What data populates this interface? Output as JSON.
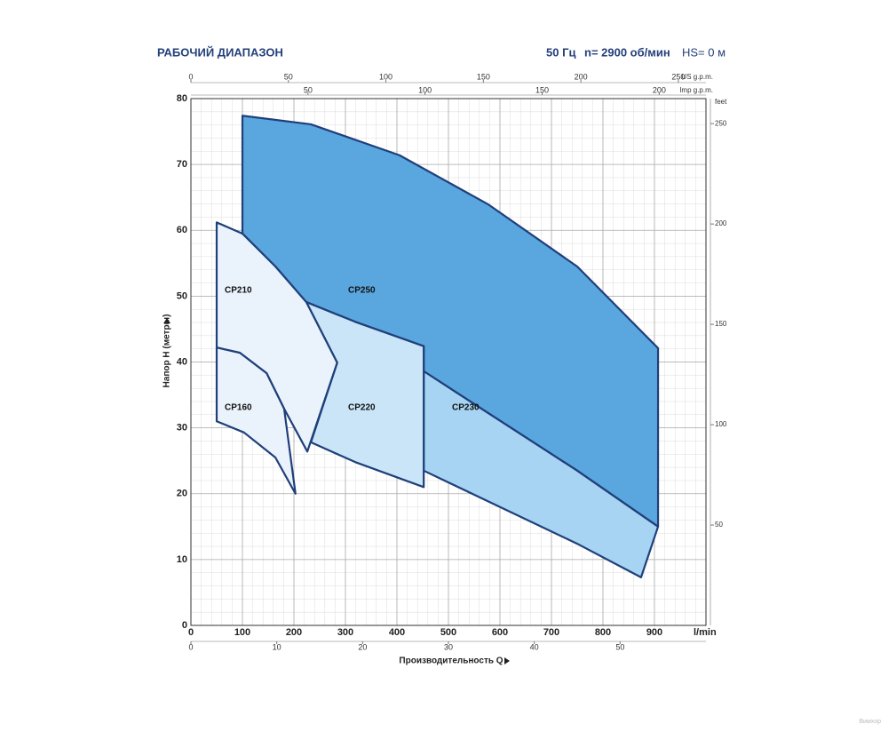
{
  "chart_data": {
    "type": "range",
    "title": "РАБОЧИЙ ДИАПАЗОН",
    "frequency": "50 Гц",
    "speed": "n= 2900 об/мин",
    "suction": "HS= 0 м",
    "xlabel": "Производительность Q",
    "ylabel": "Напор H (метры)",
    "x_unit": "l/min",
    "xlim": [
      0,
      1000
    ],
    "xticks": [
      0,
      100,
      200,
      300,
      400,
      500,
      600,
      700,
      800,
      900
    ],
    "ylim": [
      0,
      80
    ],
    "yticks": [
      0,
      10,
      20,
      30,
      40,
      50,
      60,
      70,
      80
    ],
    "y2_unit": "feet",
    "y2lim": [
      0,
      262.47
    ],
    "y2ticks": [
      50,
      100,
      150,
      200,
      250
    ],
    "x_m3h": {
      "lim": [
        0,
        60
      ],
      "ticks": [
        0,
        10,
        20,
        30,
        40,
        50
      ]
    },
    "x_us_gpm": {
      "unit": "US g.p.m.",
      "lim": [
        0,
        264.17
      ],
      "ticks": [
        0,
        50,
        100,
        150,
        200,
        250
      ]
    },
    "x_imp_gpm": {
      "unit": "Imp g.p.m.",
      "lim": [
        0,
        219.97
      ],
      "ticks": [
        50,
        100,
        150,
        200
      ]
    },
    "grid": true,
    "series": [
      {
        "name": "CP250",
        "color": "#5aa6de",
        "x": [
          100,
          233,
          405,
          578,
          750,
          907,
          907,
          750,
          578,
          452,
          452,
          319,
          224,
          164,
          100
        ],
        "y": [
          77.4,
          76.1,
          71.4,
          63.9,
          54.5,
          42.1,
          15.0,
          23.5,
          32.2,
          38.6,
          42.4,
          46.1,
          49.1,
          54.5,
          59.5
        ]
      },
      {
        "name": "CP230",
        "color": "#a6d4f2",
        "x": [
          452,
          578,
          750,
          907,
          874,
          750,
          578,
          452
        ],
        "y": [
          38.6,
          32.2,
          23.5,
          15.0,
          7.3,
          12.4,
          18.8,
          23.5
        ]
      },
      {
        "name": "CP220",
        "color": "#c9e5f7",
        "x": [
          224,
          319,
          452,
          452,
          319,
          233,
          284
        ],
        "y": [
          49.1,
          46.1,
          42.4,
          21.0,
          24.8,
          27.8,
          39.9
        ]
      },
      {
        "name": "CP210",
        "color": "#eaf3fb",
        "x": [
          50,
          100,
          164,
          224,
          284,
          226,
          181,
          147,
          95,
          50
        ],
        "y": [
          61.2,
          59.5,
          54.5,
          49.1,
          39.9,
          26.4,
          32.9,
          38.3,
          41.4,
          42.2
        ]
      },
      {
        "name": "CP160",
        "color": "#eaf3fb",
        "x": [
          50,
          95,
          147,
          181,
          203,
          164,
          103,
          50
        ],
        "y": [
          42.2,
          41.4,
          38.3,
          32.9,
          20.0,
          25.5,
          29.3,
          31.0
        ]
      }
    ],
    "watermark": "Вимхор"
  }
}
